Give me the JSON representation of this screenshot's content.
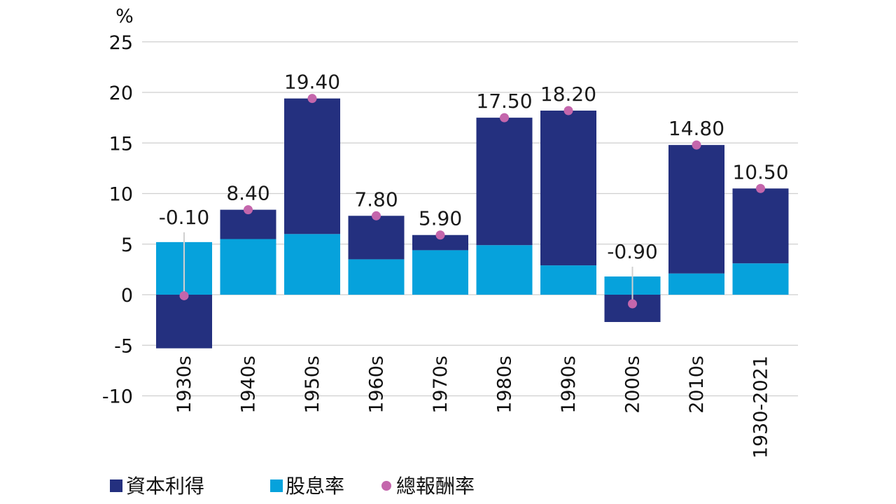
{
  "chart_data": {
    "type": "bar",
    "stacked": true,
    "unit_label": "%",
    "categories": [
      "1930s",
      "1940s",
      "1950s",
      "1960s",
      "1970s",
      "1980s",
      "1990s",
      "2000s",
      "2010s",
      "1930-2021"
    ],
    "series": [
      {
        "name": "資本利得",
        "type": "bar",
        "color": "#24307f",
        "values": [
          -5.3,
          2.9,
          13.4,
          4.3,
          1.5,
          12.6,
          15.3,
          -2.7,
          12.7,
          7.4
        ]
      },
      {
        "name": "股息率",
        "type": "bar",
        "color": "#06a2dc",
        "values": [
          5.2,
          5.5,
          6.0,
          3.5,
          4.4,
          4.9,
          2.9,
          1.8,
          2.1,
          3.1
        ]
      },
      {
        "name": "總報酬率",
        "type": "point",
        "color": "#c466ac",
        "values": [
          -0.1,
          8.4,
          19.4,
          7.8,
          5.9,
          17.5,
          18.2,
          -0.9,
          14.8,
          10.5
        ]
      }
    ],
    "data_labels": [
      "-0.10",
      "8.40",
      "19.40",
      "7.80",
      "5.90",
      "17.50",
      "18.20",
      "-0.90",
      "14.80",
      "10.50"
    ],
    "y_ticks": [
      25,
      20,
      15,
      10,
      5,
      0,
      -5,
      -10
    ],
    "ylim": [
      -10,
      25
    ],
    "grid": true,
    "legend_position": "bottom-left"
  }
}
